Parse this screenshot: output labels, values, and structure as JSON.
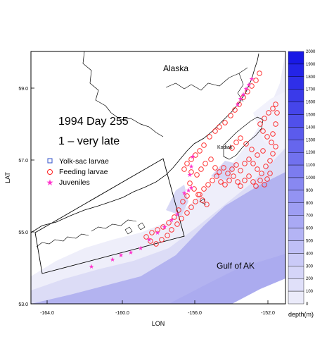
{
  "map": {
    "title_line1": "1994 Day 255",
    "title_line2": "1 – very late",
    "labels": {
      "alaska": "Alaska",
      "gulf": "Gulf of AK",
      "kodiak": "Kodiak"
    },
    "axes": {
      "xlabel": "LON",
      "ylabel": "LAT",
      "xticks": [
        "-164.0",
        "-160.0",
        "-156.0",
        "-152.0"
      ],
      "yticks": [
        "59.0",
        "57.0",
        "55.0",
        "53.0"
      ]
    },
    "legend": [
      {
        "label": "Yolk-sac larvae",
        "marker": "square",
        "color": "#3050c8"
      },
      {
        "label": "Feeding larvae",
        "marker": "circle",
        "color": "#ff2020"
      },
      {
        "label": "Juveniles",
        "marker": "star",
        "color": "#ff33cc"
      }
    ],
    "colorbar": {
      "label": "depth(m)",
      "ticks": [
        "2000",
        "1900",
        "1800",
        "1700",
        "1600",
        "1500",
        "1400",
        "1300",
        "1200",
        "1100",
        "1000",
        "900",
        "800",
        "700",
        "600",
        "500",
        "400",
        "300",
        "200",
        "100",
        "0"
      ]
    },
    "colors": {
      "deep": "#2222ee",
      "shelf_mid": "#b3b3f0",
      "shallow": "#eeeefa"
    }
  }
}
